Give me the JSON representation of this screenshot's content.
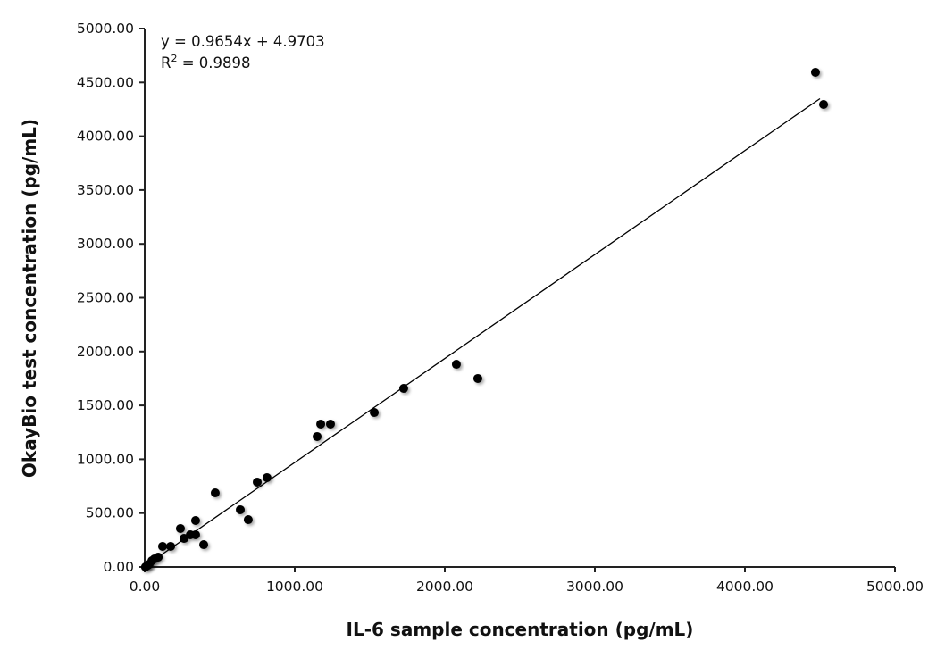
{
  "chart_data": {
    "type": "scatter",
    "title": "",
    "xlabel": "IL-6 sample concentration (pg/mL)",
    "ylabel": "OkayBio test concentration (pg/mL)",
    "xlim": [
      0,
      5000
    ],
    "ylim": [
      0,
      5000
    ],
    "xticks": [
      "0.00",
      "1000.00",
      "2000.00",
      "3000.00",
      "4000.00",
      "5000.00"
    ],
    "yticks": [
      "0.00",
      "500.00",
      "1000.00",
      "1500.00",
      "2000.00",
      "2500.00",
      "3000.00",
      "3500.00",
      "4000.00",
      "4500.00",
      "5000.00"
    ],
    "grid": false,
    "point_color": "#000000",
    "trendline": {
      "slope": 0.9654,
      "intercept": 4.9703,
      "x_range": [
        0,
        4500
      ]
    },
    "annotations": {
      "equation": "y = 0.9654x + 4.9703",
      "r2_prefix": "R",
      "r2_sup": "2",
      "r2_value": " = 0.9898"
    },
    "points": [
      [
        5,
        0
      ],
      [
        30,
        25
      ],
      [
        48,
        58
      ],
      [
        65,
        75
      ],
      [
        90,
        91
      ],
      [
        20,
        15
      ],
      [
        119,
        191
      ],
      [
        173,
        191
      ],
      [
        238,
        357
      ],
      [
        262,
        265
      ],
      [
        304,
        299
      ],
      [
        339,
        299
      ],
      [
        339,
        431
      ],
      [
        393,
        207
      ],
      [
        470,
        688
      ],
      [
        637,
        531
      ],
      [
        690,
        439
      ],
      [
        750,
        788
      ],
      [
        815,
        829
      ],
      [
        1149,
        1211
      ],
      [
        1173,
        1327
      ],
      [
        1238,
        1327
      ],
      [
        1530,
        1434
      ],
      [
        1726,
        1658
      ],
      [
        2077,
        1882
      ],
      [
        2220,
        1750
      ],
      [
        4470,
        4594
      ],
      [
        4524,
        4295
      ]
    ]
  }
}
